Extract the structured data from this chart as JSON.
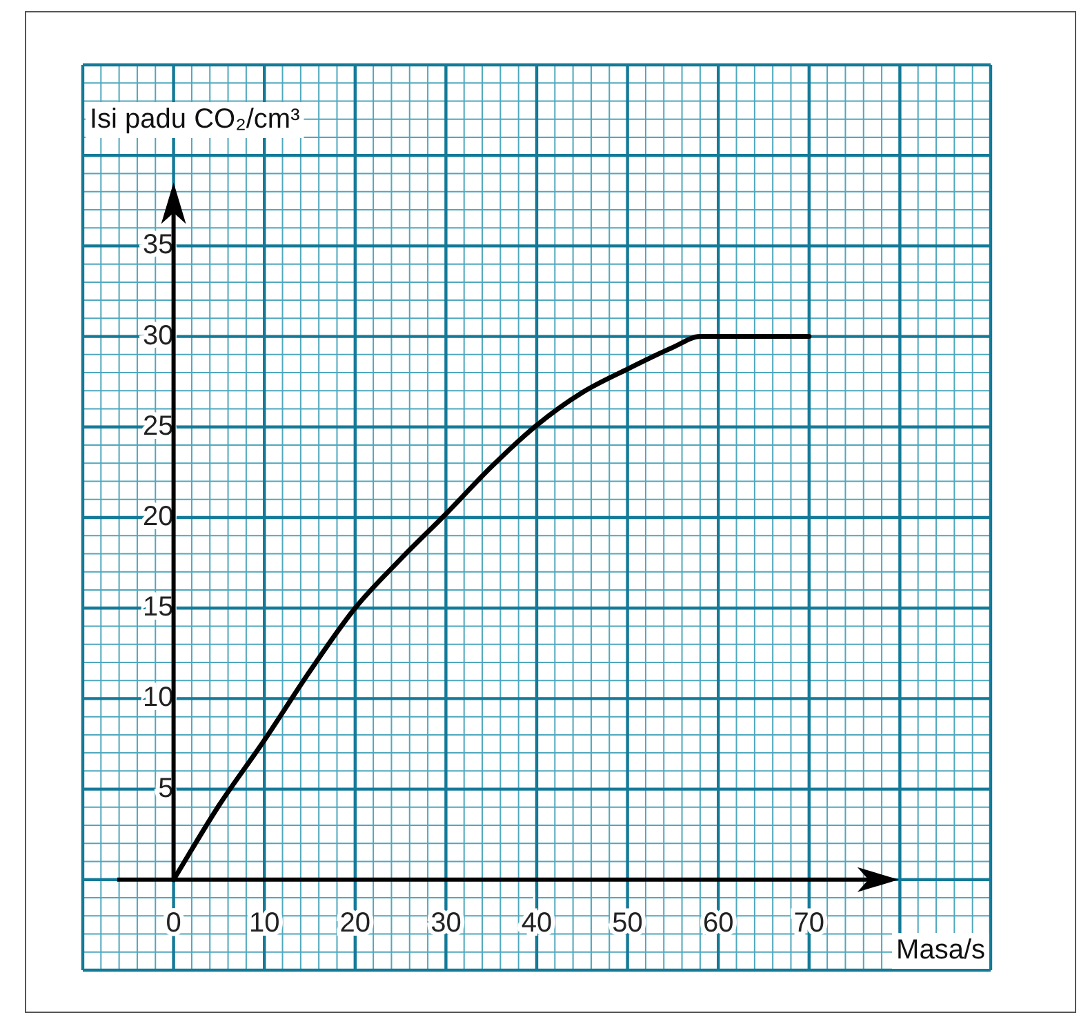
{
  "chart_data": {
    "type": "line",
    "xlabel": "Masa/s",
    "ylabel": "Isi padu CO₂/cm³",
    "x": [
      0,
      5,
      10,
      15,
      20,
      25,
      30,
      35,
      40,
      45,
      50,
      55,
      58,
      60,
      70
    ],
    "values": [
      0,
      4.1,
      7.7,
      11.5,
      15,
      17.7,
      20.2,
      22.8,
      25.1,
      26.9,
      28.2,
      29.4,
      30,
      30,
      30
    ],
    "color": "#000000",
    "xlim": [
      -10,
      90
    ],
    "ylim": [
      -5,
      45
    ],
    "xticks": [
      0,
      10,
      20,
      30,
      40,
      50,
      60,
      70
    ],
    "yticks": [
      5,
      10,
      15,
      20,
      25,
      30,
      35
    ],
    "grid": true,
    "marker": "none",
    "line_style": "solid"
  }
}
